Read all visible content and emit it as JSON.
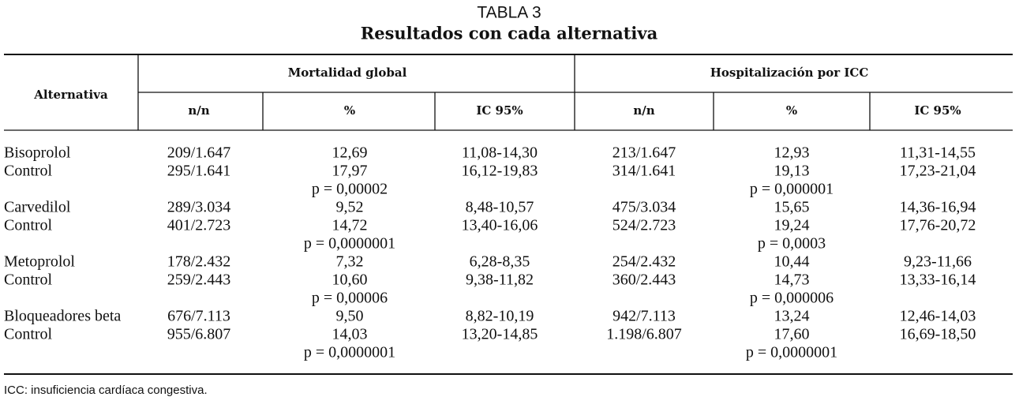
{
  "title": "TABLA 3",
  "subtitle": "Resultados con cada alternativa",
  "table": {
    "header": {
      "first": "Alternativa",
      "groups": [
        "Mortalidad global",
        "Hospitalización por ICC"
      ],
      "columns": [
        "n/n",
        "%",
        "IC 95%",
        "n/n",
        "%",
        "IC 95%"
      ]
    },
    "groups": [
      {
        "rows": [
          [
            "Bisoprolol",
            "209/1.647",
            "12,69",
            "11,08-14,30",
            "213/1.647",
            "12,93",
            "11,31-14,55"
          ],
          [
            "Control",
            "295/1.641",
            "17,97",
            "16,12-19,83",
            "314/1.641",
            "19,13",
            "17,23-21,04"
          ]
        ],
        "p": [
          "p = 0,00002",
          "p = 0,000001"
        ]
      },
      {
        "rows": [
          [
            "Carvedilol",
            "289/3.034",
            "9,52",
            "8,48-10,57",
            "475/3.034",
            "15,65",
            "14,36-16,94"
          ],
          [
            "Control",
            "401/2.723",
            "14,72",
            "13,40-16,06",
            "524/2.723",
            "19,24",
            "17,76-20,72"
          ]
        ],
        "p": [
          "p = 0,0000001",
          "p = 0,0003"
        ]
      },
      {
        "rows": [
          [
            "Metoprolol",
            "178/2.432",
            "7,32",
            "6,28-8,35",
            "254/2.432",
            "10,44",
            "9,23-11,66"
          ],
          [
            "Control",
            "259/2.443",
            "10,60",
            "9,38-11,82",
            "360/2.443",
            "14,73",
            "13,33-16,14"
          ]
        ],
        "p": [
          "p = 0,00006",
          "p = 0,000006"
        ]
      },
      {
        "rows": [
          [
            "Bloqueadores beta",
            "676/7.113",
            "9,50",
            "8,82-10,19",
            "942/7.113",
            "13,24",
            "12,46-14,03"
          ],
          [
            "Control",
            "955/6.807",
            "14,03",
            "13,20-14,85",
            "1.198/6.807",
            "17,60",
            "16,69-18,50"
          ]
        ],
        "p": [
          "p = 0,0000001",
          "p = 0,0000001"
        ]
      }
    ]
  },
  "footnote": "ICC: insuficiencia cardíaca congestiva."
}
